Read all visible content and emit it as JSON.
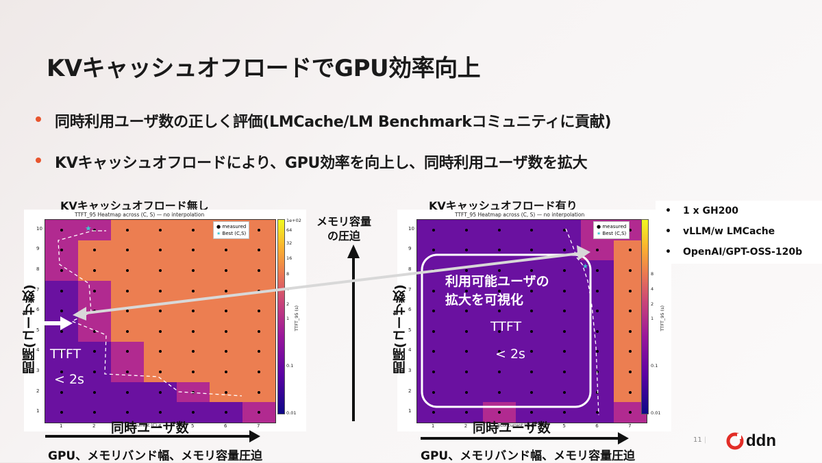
{
  "slide": {
    "title": "KVキャッシュオフロードでGPU効率向上",
    "bullets": [
      "同時利用ユーザ数の正しく評価(LMCache/LM Benchmarkコミュニティに貢献)",
      "KVキャッシュオフロードにより、GPU効率を向上し、同時利用ユーザ数を拡大"
    ],
    "page_number": "11",
    "logo_text": "ddn"
  },
  "left_panel": {
    "caption": "KVキャッシュオフロード無し",
    "heatmap_title": "TTFT_95 Heatmap across (C, S) — no interpolation",
    "y_label": "間隔(ユーザ数)",
    "x_label": "同時ユーザ数",
    "bottom_label": "GPU、メモリバンド幅、メモリ容量圧迫",
    "overlay_line1": "TTFT",
    "overlay_line2": "< 2s",
    "x_axis_small": "Concurrent (C)"
  },
  "right_panel": {
    "caption": "KVキャッシュオフロード有り",
    "heatmap_title": "TTFT_95 Heatmap across (C, S) — no interpolation",
    "y_label": "間隔(ユーザ数)",
    "x_label": "同時ユーザ数",
    "bottom_label": "GPU、メモリバンド幅、メモリ容量圧迫",
    "overlay_label_1": "利用可能ユーザの",
    "overlay_label_2": "拡大を可視化",
    "overlay_line1": "TTFT",
    "overlay_line2": "< 2s",
    "x_axis_small": "Concurrent (C)"
  },
  "middle": {
    "label_1": "メモリ容量",
    "label_2": "の圧迫"
  },
  "legend": {
    "measured": "measured",
    "best": "Best (C,S)"
  },
  "colorbar": {
    "label": "TTFT_95 (s)",
    "left_ticks": [
      "1e+02",
      "64",
      "32",
      "16",
      "8",
      "4",
      "2",
      "1",
      "0.1",
      "0.01"
    ],
    "right_ticks": [
      "8",
      "4",
      "2",
      "1",
      "0.1",
      "0.01"
    ]
  },
  "axes": {
    "x_ticks": [
      "1",
      "2",
      "3",
      "4",
      "5",
      "6",
      "7"
    ],
    "y_ticks": [
      "10",
      "9",
      "8",
      "7",
      "6",
      "5",
      "4",
      "3",
      "2",
      "1"
    ]
  },
  "specs": [
    "1 x GH200",
    "vLLM/w LMCache",
    "OpenAI/GPT-OSS-120b"
  ],
  "colors": {
    "accent": "#e8552e",
    "low": "#6a11a0",
    "mid": "#b12a90",
    "high": "#ec7e51",
    "brand_red": "#e22d27"
  },
  "heatmaps": {
    "left": [
      [
        2,
        2,
        3,
        3,
        3,
        3,
        3
      ],
      [
        2,
        3,
        3,
        3,
        3,
        3,
        3
      ],
      [
        2,
        3,
        3,
        3,
        3,
        3,
        3
      ],
      [
        1,
        2,
        3,
        3,
        3,
        3,
        3
      ],
      [
        1,
        2,
        3,
        3,
        3,
        3,
        3
      ],
      [
        1,
        2,
        3,
        3,
        3,
        3,
        3
      ],
      [
        1,
        1,
        2,
        3,
        3,
        3,
        3
      ],
      [
        1,
        1,
        2,
        3,
        3,
        3,
        3
      ],
      [
        1,
        1,
        1,
        1,
        2,
        3,
        3
      ],
      [
        1,
        1,
        1,
        1,
        1,
        1,
        2
      ]
    ],
    "right": [
      [
        1,
        1,
        1,
        1,
        1,
        2,
        2
      ],
      [
        1,
        1,
        1,
        1,
        1,
        2,
        3
      ],
      [
        1,
        1,
        1,
        1,
        1,
        1,
        3
      ],
      [
        1,
        1,
        1,
        1,
        1,
        1,
        3
      ],
      [
        1,
        1,
        1,
        1,
        1,
        1,
        3
      ],
      [
        1,
        1,
        1,
        1,
        1,
        1,
        3
      ],
      [
        1,
        1,
        1,
        1,
        1,
        1,
        3
      ],
      [
        1,
        1,
        1,
        1,
        1,
        1,
        3
      ],
      [
        1,
        1,
        1,
        1,
        1,
        1,
        3
      ],
      [
        1,
        1,
        2,
        1,
        1,
        1,
        2
      ]
    ]
  }
}
